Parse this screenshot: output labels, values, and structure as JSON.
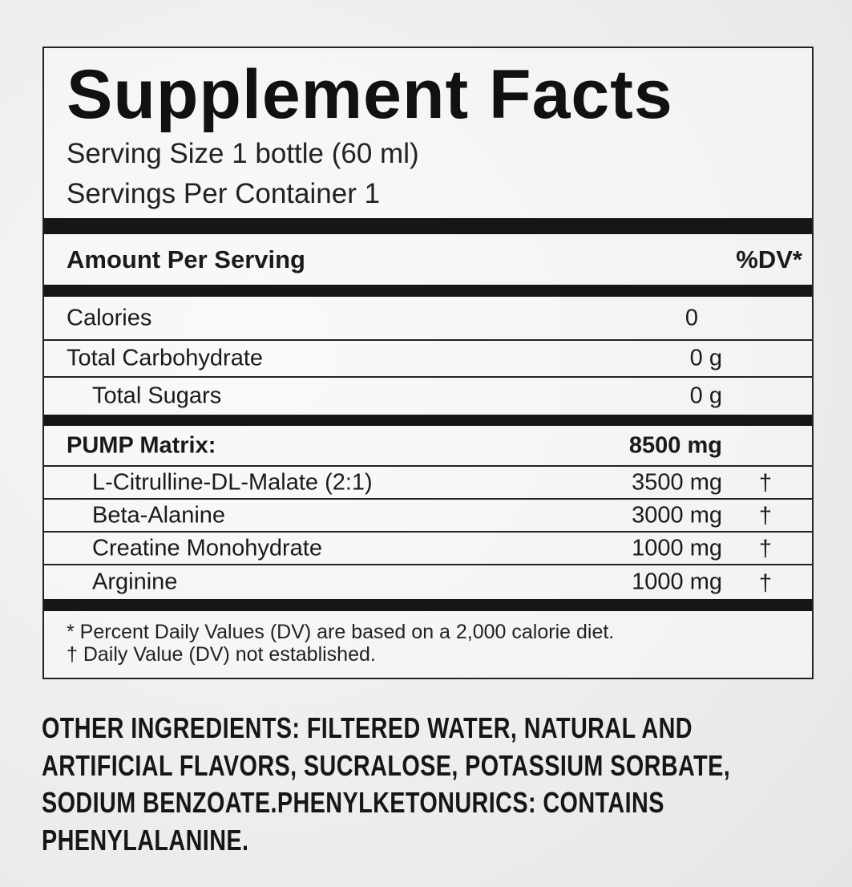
{
  "facts": {
    "title": "Supplement Facts",
    "serving_size": "Serving Size 1 bottle (60 ml)",
    "servings_per_container": "Servings Per Container 1",
    "amount_header": "Amount Per Serving",
    "dv_header": "%DV*",
    "nutrients": [
      {
        "name": "Calories",
        "amount": "0"
      },
      {
        "name": "Total Carbohydrate",
        "amount": "0 g"
      },
      {
        "name": "Total Sugars",
        "amount": "0 g"
      }
    ],
    "blend": {
      "name": "PUMP Matrix:",
      "amount": "8500 mg",
      "items": [
        {
          "name": "L-Citrulline-DL-Malate (2:1)",
          "amount": "3500 mg",
          "dv": "†"
        },
        {
          "name": "Beta-Alanine",
          "amount": "3000 mg",
          "dv": "†"
        },
        {
          "name": "Creatine Monohydrate",
          "amount": "1000 mg",
          "dv": "†"
        },
        {
          "name": "Arginine",
          "amount": "1000 mg",
          "dv": "†"
        }
      ]
    },
    "footnotes": [
      "* Percent Daily Values (DV) are based on a 2,000 calorie diet.",
      "† Daily Value (DV) not established."
    ]
  },
  "other_ingredients": {
    "label": "OTHER INGREDIENTS:",
    "lines": [
      " FILTERED WATER, NATURAL AND",
      "ARTIFICIAL FLAVORS, SUCRALOSE, POTASSIUM SORBATE,",
      "SODIUM BENZOATE.PHENYLKETONURICS: CONTAINS",
      "PHENYLALANINE."
    ]
  }
}
